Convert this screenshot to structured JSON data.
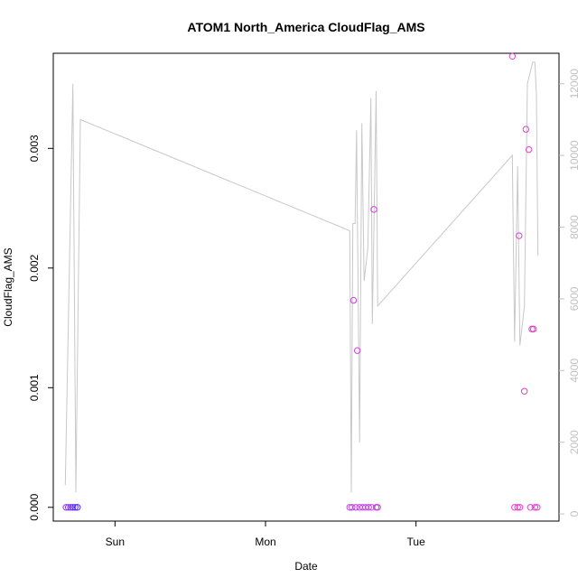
{
  "chart_data": {
    "type": "scatter",
    "title": "ATOM1 North_America CloudFlag_AMS",
    "xlabel": "Date",
    "ylabel": "CloudFlag_AMS",
    "x_ticks": [
      {
        "label": "Sun",
        "t": 1.0
      },
      {
        "label": "Mon",
        "t": 2.0
      },
      {
        "label": "Tue",
        "t": 3.0
      }
    ],
    "xlim": [
      0.59,
      3.95
    ],
    "y_left": {
      "ticks": [
        0.0,
        0.001,
        0.002,
        0.003
      ],
      "tick_labels": [
        "0.000",
        "0.001",
        "0.002",
        "0.003"
      ],
      "lim": [
        -0.000115,
        0.003795
      ]
    },
    "y_right": {
      "ticks": [
        0,
        2000,
        4000,
        6000,
        8000,
        10000,
        12000
      ],
      "tick_labels": [
        "0",
        "2000",
        "4000",
        "6000",
        "8000",
        "10000",
        "12000"
      ],
      "lim": [
        -200,
        12850
      ],
      "color": "#c0c0c0"
    },
    "grid": false,
    "legend": "none",
    "line_series": {
      "axis": "right",
      "color": "#c8c8c8",
      "points": [
        [
          0.67,
          800
        ],
        [
          0.72,
          12000
        ],
        [
          0.74,
          600
        ],
        [
          0.77,
          11000
        ],
        [
          2.56,
          7900
        ],
        [
          2.57,
          600
        ],
        [
          2.58,
          8100
        ],
        [
          2.595,
          8100
        ],
        [
          2.605,
          10700
        ],
        [
          2.625,
          2000
        ],
        [
          2.64,
          10900
        ],
        [
          2.655,
          6500
        ],
        [
          2.68,
          7400
        ],
        [
          2.7,
          11600
        ],
        [
          2.71,
          5300
        ],
        [
          2.735,
          11800
        ],
        [
          2.745,
          5800
        ],
        [
          3.64,
          10000
        ],
        [
          3.655,
          4800
        ],
        [
          3.675,
          9700
        ],
        [
          3.69,
          4700
        ],
        [
          3.72,
          5800
        ],
        [
          3.74,
          12000
        ],
        [
          3.775,
          12600
        ],
        [
          3.79,
          12600
        ],
        [
          3.8,
          11700
        ],
        [
          3.81,
          7200
        ]
      ]
    },
    "point_series": {
      "axis": "left",
      "points": [
        {
          "t": 0.675,
          "y": 0.0,
          "color": "#8a3cf0"
        },
        {
          "t": 0.69,
          "y": 0.0,
          "color": "#8a3cf0"
        },
        {
          "t": 0.705,
          "y": 0.0,
          "color": "#7a38f0"
        },
        {
          "t": 0.72,
          "y": 0.0,
          "color": "#6a34f0"
        },
        {
          "t": 0.735,
          "y": 0.0,
          "color": "#5a30f0"
        },
        {
          "t": 0.75,
          "y": 0.0,
          "color": "#4a2cf0"
        },
        {
          "t": 2.56,
          "y": 0.0,
          "color": "#c040e0"
        },
        {
          "t": 2.575,
          "y": 0.0,
          "color": "#c040e0"
        },
        {
          "t": 2.585,
          "y": 0.00173,
          "color": "#d040e0"
        },
        {
          "t": 2.6,
          "y": 0.0,
          "color": "#c040e0"
        },
        {
          "t": 2.61,
          "y": 0.00131,
          "color": "#d040e0"
        },
        {
          "t": 2.625,
          "y": 0.0,
          "color": "#c040e0"
        },
        {
          "t": 2.645,
          "y": 0.0,
          "color": "#c040e0"
        },
        {
          "t": 2.665,
          "y": 0.0,
          "color": "#c040e0"
        },
        {
          "t": 2.685,
          "y": 0.0,
          "color": "#c040e0"
        },
        {
          "t": 2.705,
          "y": 0.0,
          "color": "#c040e0"
        },
        {
          "t": 2.72,
          "y": 0.00249,
          "color": "#d040e0"
        },
        {
          "t": 2.735,
          "y": 0.0,
          "color": "#c040e0"
        },
        {
          "t": 2.745,
          "y": 0.0,
          "color": "#c040e0"
        },
        {
          "t": 3.64,
          "y": 0.00377,
          "color": "#e040c8"
        },
        {
          "t": 3.655,
          "y": 0.0,
          "color": "#e040c8"
        },
        {
          "t": 3.675,
          "y": 0.0,
          "color": "#e040c8"
        },
        {
          "t": 3.685,
          "y": 0.00227,
          "color": "#e040c8"
        },
        {
          "t": 3.69,
          "y": 0.0,
          "color": "#e040c8"
        },
        {
          "t": 3.72,
          "y": 0.00097,
          "color": "#e040c8"
        },
        {
          "t": 3.73,
          "y": 0.00316,
          "color": "#e040c8"
        },
        {
          "t": 3.75,
          "y": 0.00299,
          "color": "#e040c8"
        },
        {
          "t": 3.76,
          "y": 0.0,
          "color": "#e040c8"
        },
        {
          "t": 3.77,
          "y": 0.00149,
          "color": "#e040c8"
        },
        {
          "t": 3.78,
          "y": 0.00149,
          "color": "#e040c8"
        },
        {
          "t": 3.79,
          "y": 0.0,
          "color": "#e040c8"
        },
        {
          "t": 3.805,
          "y": 0.0,
          "color": "#e040c8"
        }
      ]
    }
  }
}
